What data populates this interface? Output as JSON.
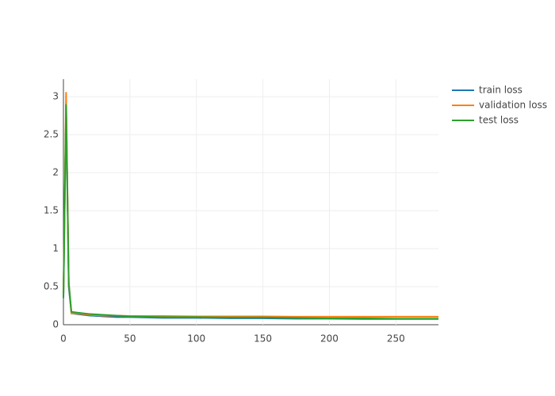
{
  "chart_data": {
    "type": "line",
    "x": [
      0,
      2,
      4,
      6,
      10,
      15,
      20,
      30,
      40,
      50,
      75,
      100,
      125,
      150,
      175,
      200,
      225,
      250,
      282
    ],
    "series": [
      {
        "name": "train loss",
        "color": "#1f77b4",
        "values": [
          0.35,
          2.9,
          0.5,
          0.15,
          0.14,
          0.13,
          0.12,
          0.11,
          0.1,
          0.1,
          0.09,
          0.09,
          0.085,
          0.085,
          0.08,
          0.08,
          0.075,
          0.075,
          0.075
        ]
      },
      {
        "name": "validation loss",
        "color": "#ff7f0e",
        "values": [
          0.4,
          3.06,
          0.55,
          0.15,
          0.15,
          0.14,
          0.13,
          0.12,
          0.12,
          0.115,
          0.115,
          0.11,
          0.11,
          0.11,
          0.105,
          0.105,
          0.105,
          0.105,
          0.105
        ]
      },
      {
        "name": "test loss",
        "color": "#2ca02c",
        "values": [
          0.35,
          2.9,
          0.55,
          0.17,
          0.16,
          0.15,
          0.14,
          0.13,
          0.12,
          0.11,
          0.1,
          0.1,
          0.095,
          0.095,
          0.09,
          0.085,
          0.085,
          0.08,
          0.08
        ]
      }
    ],
    "xlim": [
      0,
      282
    ],
    "ylim": [
      0,
      3.23
    ],
    "xticks": [
      0,
      50,
      100,
      150,
      200,
      250
    ],
    "yticks": [
      0,
      0.5,
      1,
      1.5,
      2,
      2.5,
      3
    ],
    "grid": true,
    "legend": "top-right"
  }
}
